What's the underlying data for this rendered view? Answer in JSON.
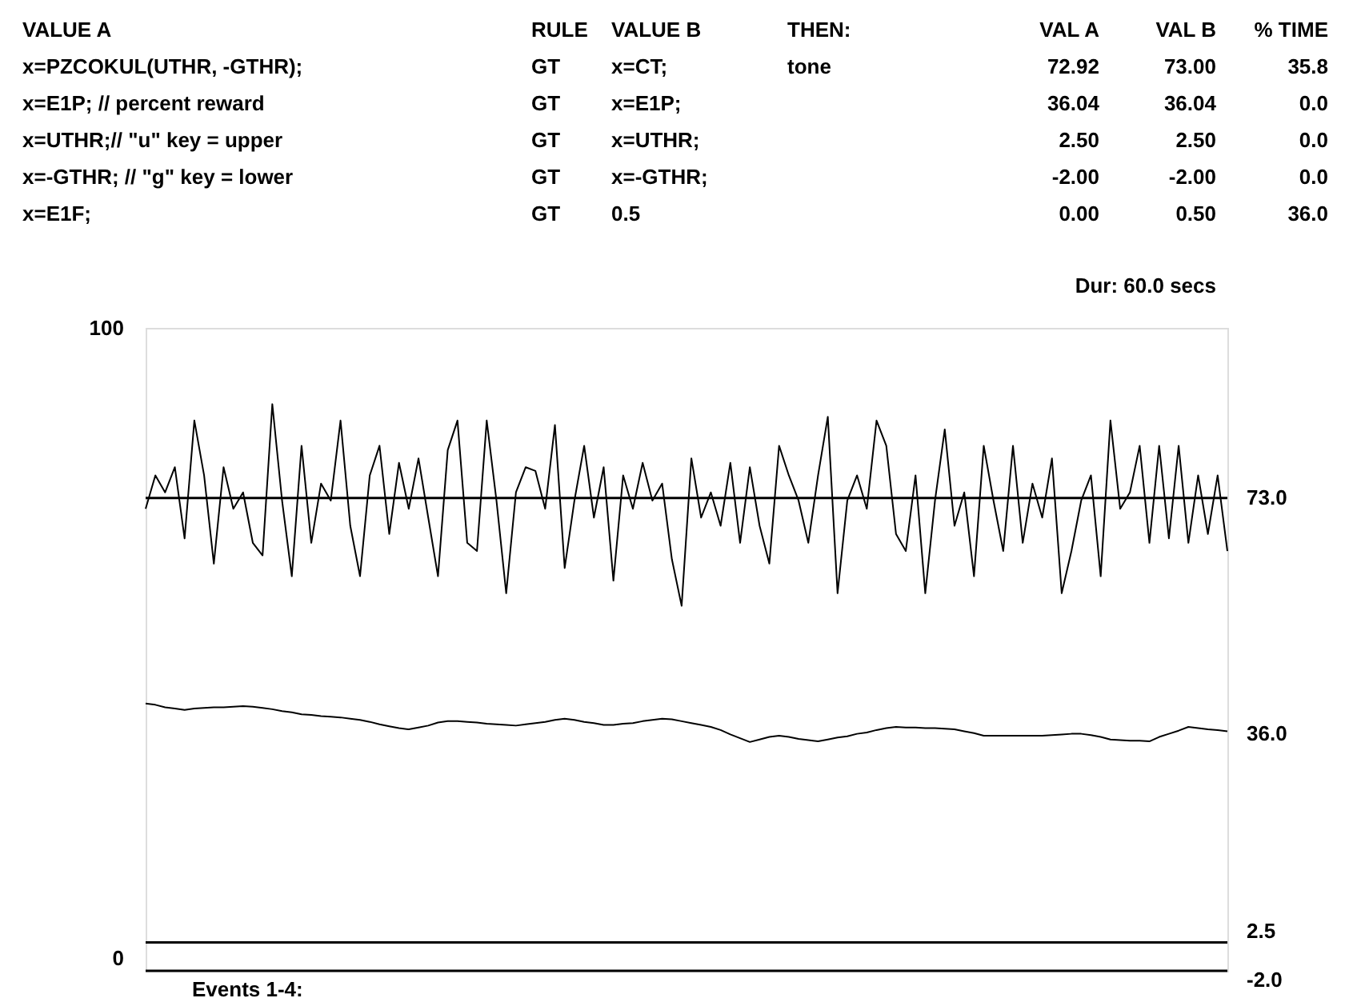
{
  "chart_data": {
    "type": "line",
    "annotations": [
      "VALUE A",
      "RULE",
      "VALUE B",
      "THEN:",
      "VAL A",
      "VAL B",
      "% TIME",
      "x=PZCOKUL(UTHR, -GTHR);",
      "GT",
      "x=CT;",
      "tone",
      "72.92",
      "73.00",
      "35.8",
      "x=E1P; // percent reward",
      "GT",
      "x=E1P;",
      "36.04",
      "36.04",
      "0.0",
      "x=UTHR;// \"u\" key = upper",
      "GT",
      "x=UTHR;",
      "2.50",
      "2.50",
      "0.0",
      "x=-GTHR; // \"g\" key = lower",
      "GT",
      "x=-GTHR;",
      "-2.00",
      "-2.00",
      "0.0",
      "x=E1F;",
      "GT",
      "0.5",
      "0.00",
      "0.50",
      "36.0",
      "Dur: 60.0 secs",
      "Events 1-4:",
      "36.0"
    ],
    "categories": [
      null,
      null,
      null,
      null,
      null,
      null,
      null,
      null,
      null,
      null,
      null,
      null,
      null,
      null,
      null,
      null,
      null,
      null,
      null,
      null,
      null,
      null,
      null,
      null,
      null,
      null,
      null,
      null,
      null,
      null,
      null,
      null,
      null,
      null,
      null,
      null,
      null,
      null,
      null,
      null,
      null,
      null,
      null,
      null,
      null,
      null,
      null,
      null,
      null,
      null,
      null,
      null,
      null,
      null,
      null,
      null,
      null,
      null,
      null,
      null,
      null,
      null,
      null,
      null,
      null,
      null,
      null,
      null,
      null,
      null,
      null,
      null,
      null,
      null,
      null,
      null,
      null,
      null,
      null,
      null,
      null,
      null,
      null,
      null,
      null,
      null,
      null,
      null,
      null,
      null,
      null,
      null,
      null,
      null,
      null,
      null,
      null,
      null,
      null,
      null,
      null,
      null,
      null,
      null,
      null,
      null,
      null,
      null,
      null,
      null,
      null,
      null
    ],
    "ylim": [
      -2,
      100
    ],
    "yticks": [
      0,
      100
    ],
    "tick_labels": "y",
    "grid": false,
    "marker": "none",
    "line_style": "solid",
    "ref_lines": [
      {
        "axis": "y",
        "value": 73,
        "label": "73.0",
        "color": "#000000"
      },
      {
        "axis": "y",
        "value": 2.5,
        "label": "2.5",
        "color": "#000000"
      },
      {
        "axis": "y",
        "value": -2,
        "label": "-2.0",
        "color": "#000000"
      }
    ],
    "series": [
      {
        "color": "#000000",
        "values": [
          71.3,
          76.6,
          73.9,
          77.9,
          66.6,
          85.3,
          76.6,
          62.6,
          77.9,
          71.3,
          73.9,
          65.9,
          63.9,
          87.9,
          72.6,
          60.6,
          81.3,
          65.9,
          75.3,
          72.6,
          85.3,
          68.6,
          60.6,
          76.6,
          81.3,
          67.3,
          78.6,
          71.3,
          79.3,
          69.9,
          60.6,
          80.6,
          85.3,
          65.9,
          64.6,
          85.3,
          72.6,
          57.9,
          73.9,
          77.9,
          77.3,
          71.3,
          84.6,
          61.9,
          72.6,
          81.3,
          69.9,
          77.9,
          59.9,
          76.6,
          71.3,
          78.6,
          72.6,
          75.3,
          63.3,
          55.9,
          79.3,
          69.9,
          73.9,
          68.6,
          78.6,
          65.9,
          77.9,
          68.6,
          62.6,
          81.3,
          76.6,
          72.6,
          65.9,
          76.6,
          85.9,
          57.9,
          72.6,
          76.6,
          71.3,
          85.3,
          81.3,
          67.3,
          64.6,
          76.6,
          57.9,
          72.6,
          83.9,
          68.6,
          73.9,
          60.6,
          81.3,
          72.6,
          64.6,
          81.3,
          65.9,
          75.3,
          69.9,
          79.3,
          57.9,
          64.6,
          72.6,
          76.6,
          60.6,
          85.3,
          71.3,
          73.9,
          81.3,
          65.9,
          81.3,
          66.6,
          81.3,
          65.9,
          76.6,
          67.3,
          76.6,
          64.6
        ]
      },
      {
        "color": "#000000",
        "values": [
          40.4,
          40.2,
          39.8,
          39.6,
          39.4,
          39.6,
          39.7,
          39.8,
          39.8,
          39.9,
          40.0,
          39.9,
          39.7,
          39.5,
          39.2,
          39.0,
          38.7,
          38.6,
          38.4,
          38.3,
          38.2,
          38.0,
          37.8,
          37.5,
          37.1,
          36.8,
          36.5,
          36.3,
          36.6,
          36.9,
          37.4,
          37.6,
          37.6,
          37.5,
          37.4,
          37.2,
          37.1,
          37.0,
          36.9,
          37.1,
          37.3,
          37.5,
          37.8,
          38.0,
          37.8,
          37.5,
          37.3,
          37.0,
          37.0,
          37.2,
          37.3,
          37.6,
          37.8,
          38.0,
          37.9,
          37.6,
          37.3,
          37.0,
          36.7,
          36.2,
          35.5,
          34.9,
          34.3,
          34.7,
          35.1,
          35.3,
          35.1,
          34.8,
          34.6,
          34.4,
          34.7,
          35.0,
          35.2,
          35.6,
          35.8,
          36.2,
          36.5,
          36.7,
          36.6,
          36.6,
          36.5,
          36.5,
          36.4,
          36.3,
          36.0,
          35.7,
          35.3,
          35.3,
          35.3,
          35.3,
          35.3,
          35.3,
          35.3,
          35.4,
          35.5,
          35.6,
          35.6,
          35.4,
          35.1,
          34.7,
          34.6,
          34.5,
          34.5,
          34.4,
          35.1,
          35.6,
          36.1,
          36.7,
          36.5,
          36.3,
          36.2,
          36.0
        ]
      }
    ]
  }
}
